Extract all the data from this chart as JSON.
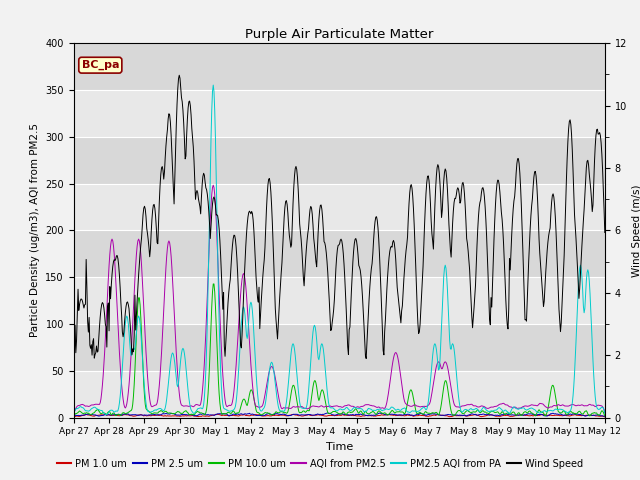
{
  "title": "Purple Air Particulate Matter",
  "xlabel": "Time",
  "ylabel_left": "Particle Density (ug/m3), AQI from PM2.5",
  "ylabel_right": "Wind Speed (m/s)",
  "annotation": "BC_pa",
  "ylim_left": [
    0,
    400
  ],
  "ylim_right": [
    0,
    12
  ],
  "fig_bg": "#f2f2f2",
  "plot_bg": "#dcdcdc",
  "legend_entries": [
    "PM 1.0 um",
    "PM 2.5 um",
    "PM 10.0 um",
    "AQI from PM2.5",
    "PM2.5 AQI from PA",
    "Wind Speed"
  ],
  "legend_colors": [
    "#cc0000",
    "#0000bb",
    "#00bb00",
    "#aa00aa",
    "#00cccc",
    "#000000"
  ],
  "x_tick_labels": [
    "Apr 27",
    "Apr 28",
    "Apr 29",
    "Apr 30",
    "May 1",
    "May 2",
    "May 3",
    "May 4",
    "May 5",
    "May 6",
    "May 7",
    "May 8",
    "May 9",
    "May 10",
    "May 11",
    "May 12"
  ],
  "n_points": 720,
  "days": 15
}
